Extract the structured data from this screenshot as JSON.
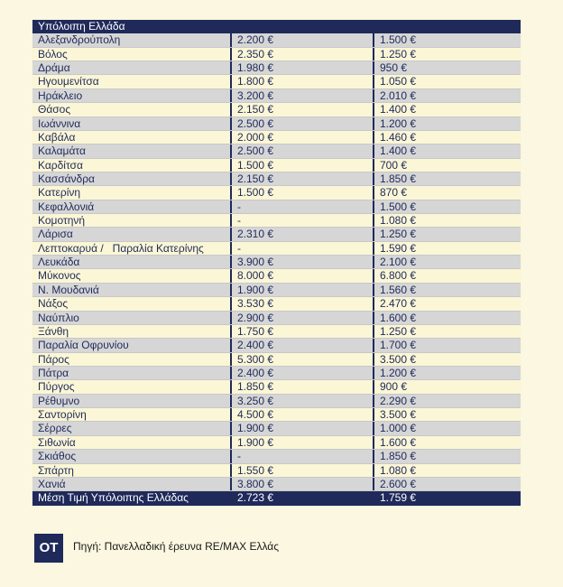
{
  "table": {
    "title": "Υπόλοιπη Ελλάδα",
    "rows": [
      [
        "Αλεξανδρούπολη",
        "2.200 €",
        "1.500 €"
      ],
      [
        "Βόλος",
        "2.350 €",
        "1.250 €"
      ],
      [
        "Δράμα",
        "1.980 €",
        "950 €"
      ],
      [
        "Ηγουμενίτσα",
        "1.800 €",
        "1.050 €"
      ],
      [
        "Ηράκλειο",
        "3.200 €",
        "2.010 €"
      ],
      [
        "Θάσος",
        "2.150 €",
        "1.400 €"
      ],
      [
        "Ιωάννινα",
        "2.500 €",
        "1.200 €"
      ],
      [
        "Καβάλα",
        "2.000 €",
        "1.460 €"
      ],
      [
        "Καλαμάτα",
        "2.500 €",
        "1.400 €"
      ],
      [
        "Καρδίτσα",
        "1.500 €",
        "700 €"
      ],
      [
        "Κασσάνδρα",
        "2.150 €",
        "1.850 €"
      ],
      [
        "Κατερίνη",
        "1.500 €",
        "870 €"
      ],
      [
        "Κεφαλλονιά",
        "-",
        "1.500 €"
      ],
      [
        "Κομοτηνή",
        "-",
        "1.080 €"
      ],
      [
        "Λάρισα",
        "2.310 €",
        "1.250 €"
      ],
      [
        "Λεπτοκαρυά /   Παραλία Κατερίνης",
        "-",
        "1.590 €"
      ],
      [
        "Λευκάδα",
        "3.900 €",
        "2.100 €"
      ],
      [
        "Μύκονος",
        "8.000 €",
        "6.800 €"
      ],
      [
        "Ν. Μουδανιά",
        "1.900 €",
        "1.560 €"
      ],
      [
        "Νάξος",
        "3.530 €",
        "2.470 €"
      ],
      [
        "Ναύπλιο",
        "2.900 €",
        "1.600 €"
      ],
      [
        "Ξάνθη",
        "1.750 €",
        "1.250 €"
      ],
      [
        "Παραλία Οφρυνίου",
        "2.400 €",
        "1.700 €"
      ],
      [
        "Πάρος",
        "5.300 €",
        "3.500 €"
      ],
      [
        "Πάτρα",
        "2.400 €",
        "1.200 €"
      ],
      [
        "Πύργος",
        "1.850 €",
        "900 €"
      ],
      [
        "Ρέθυμνο",
        "3.250 €",
        "2.290 €"
      ],
      [
        "Σαντορίνη",
        "4.500 €",
        "3.500 €"
      ],
      [
        "Σέρρες",
        "1.900 €",
        "1.000 €"
      ],
      [
        "Σιθωνία",
        "1.900 €",
        "1.600 €"
      ],
      [
        "Σκιάθος",
        "-",
        "1.850 €"
      ],
      [
        "Σπάρτη",
        "1.550 €",
        "1.080 €"
      ],
      [
        "Χανιά",
        "3.800 €",
        "2.600 €"
      ]
    ],
    "footer": [
      "Μέση Τιμή Υπόλοιπης Ελλάδας",
      "2.723 €",
      "1.759 €"
    ]
  },
  "source": {
    "logo": "OT",
    "text": "Πηγή: Πανελλαδική έρευνα RE/MAX Ελλάς"
  }
}
